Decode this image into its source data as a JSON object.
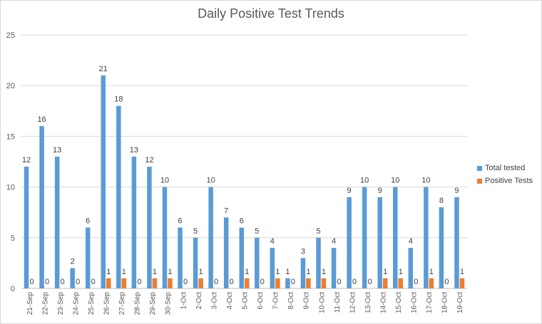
{
  "chart_data": {
    "type": "bar",
    "title": "Daily Positive Test Trends",
    "xlabel": "",
    "ylabel": "",
    "ylim": [
      0,
      25
    ],
    "yticks": [
      0,
      5,
      10,
      15,
      20,
      25
    ],
    "grid": true,
    "legend_position": "right",
    "categories": [
      "21-Sep",
      "22-Sep",
      "23-Sep",
      "24-Sep",
      "25-Sep",
      "26-Sep",
      "27-Sep",
      "28-Sep",
      "29-Sep",
      "30-Sep",
      "1-Oct",
      "2-Oct",
      "3-Oct",
      "4-Oct",
      "5-Oct",
      "6-Oct",
      "7-Oct",
      "8-Oct",
      "9-Oct",
      "10-Oct",
      "11-Oct",
      "12-Oct",
      "13-Oct",
      "14-Oct",
      "15-Oct",
      "16-Oct",
      "17-Oct",
      "18-Oct",
      "19-Oct"
    ],
    "series": [
      {
        "name": "Total tested",
        "color": "#5b9bd5",
        "values": [
          12,
          16,
          13,
          2,
          6,
          21,
          18,
          13,
          12,
          10,
          6,
          5,
          10,
          7,
          6,
          5,
          4,
          1,
          3,
          5,
          4,
          9,
          10,
          9,
          10,
          4,
          10,
          8,
          9
        ]
      },
      {
        "name": "Positive Tests",
        "color": "#ed7d31",
        "values": [
          0,
          0,
          0,
          0,
          0,
          1,
          1,
          0,
          1,
          1,
          0,
          1,
          0,
          0,
          1,
          0,
          1,
          0,
          1,
          1,
          0,
          0,
          0,
          1,
          1,
          0,
          1,
          0,
          1
        ]
      }
    ]
  }
}
